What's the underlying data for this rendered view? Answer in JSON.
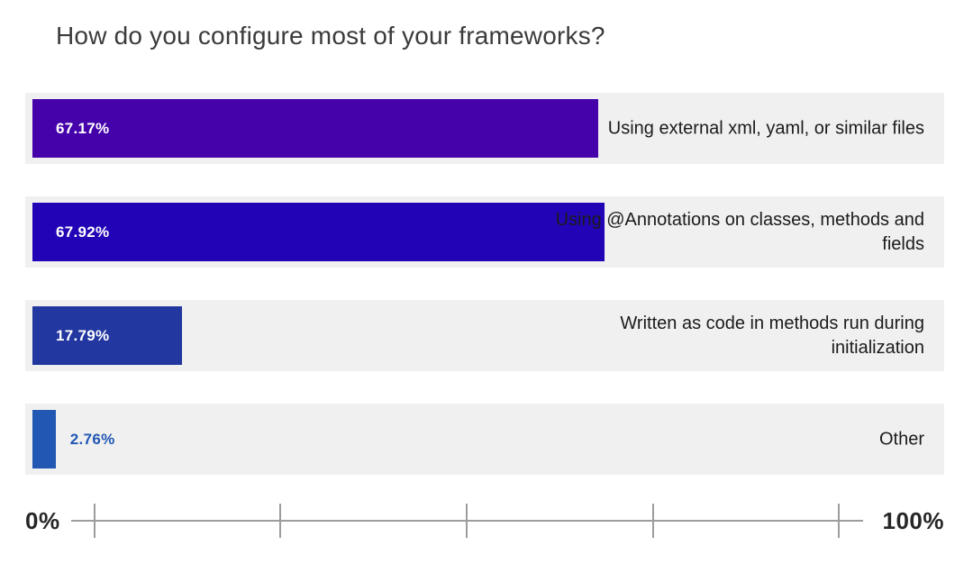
{
  "chart_data": {
    "type": "bar",
    "orientation": "horizontal",
    "title": "How do you configure most of your frameworks?",
    "categories": [
      "Using external xml, yaml, or similar files",
      "Using @Annotations on classes, methods and fields",
      "Written as code in methods run during initialization",
      "Other"
    ],
    "values": [
      67.17,
      67.92,
      17.79,
      2.76
    ],
    "value_labels": [
      "67.17%",
      "67.92%",
      "17.79%",
      "2.76%"
    ],
    "colors": [
      "#4502aa",
      "#2204b6",
      "#22379f",
      "#2257b4"
    ],
    "value_label_inside": [
      true,
      true,
      true,
      false
    ],
    "xlim": [
      0,
      100
    ],
    "grid": false,
    "legend_position": "none",
    "axis": {
      "min_label": "0%",
      "max_label": "100%",
      "tick_count": 5
    },
    "row_background": "#f0f0f0"
  }
}
